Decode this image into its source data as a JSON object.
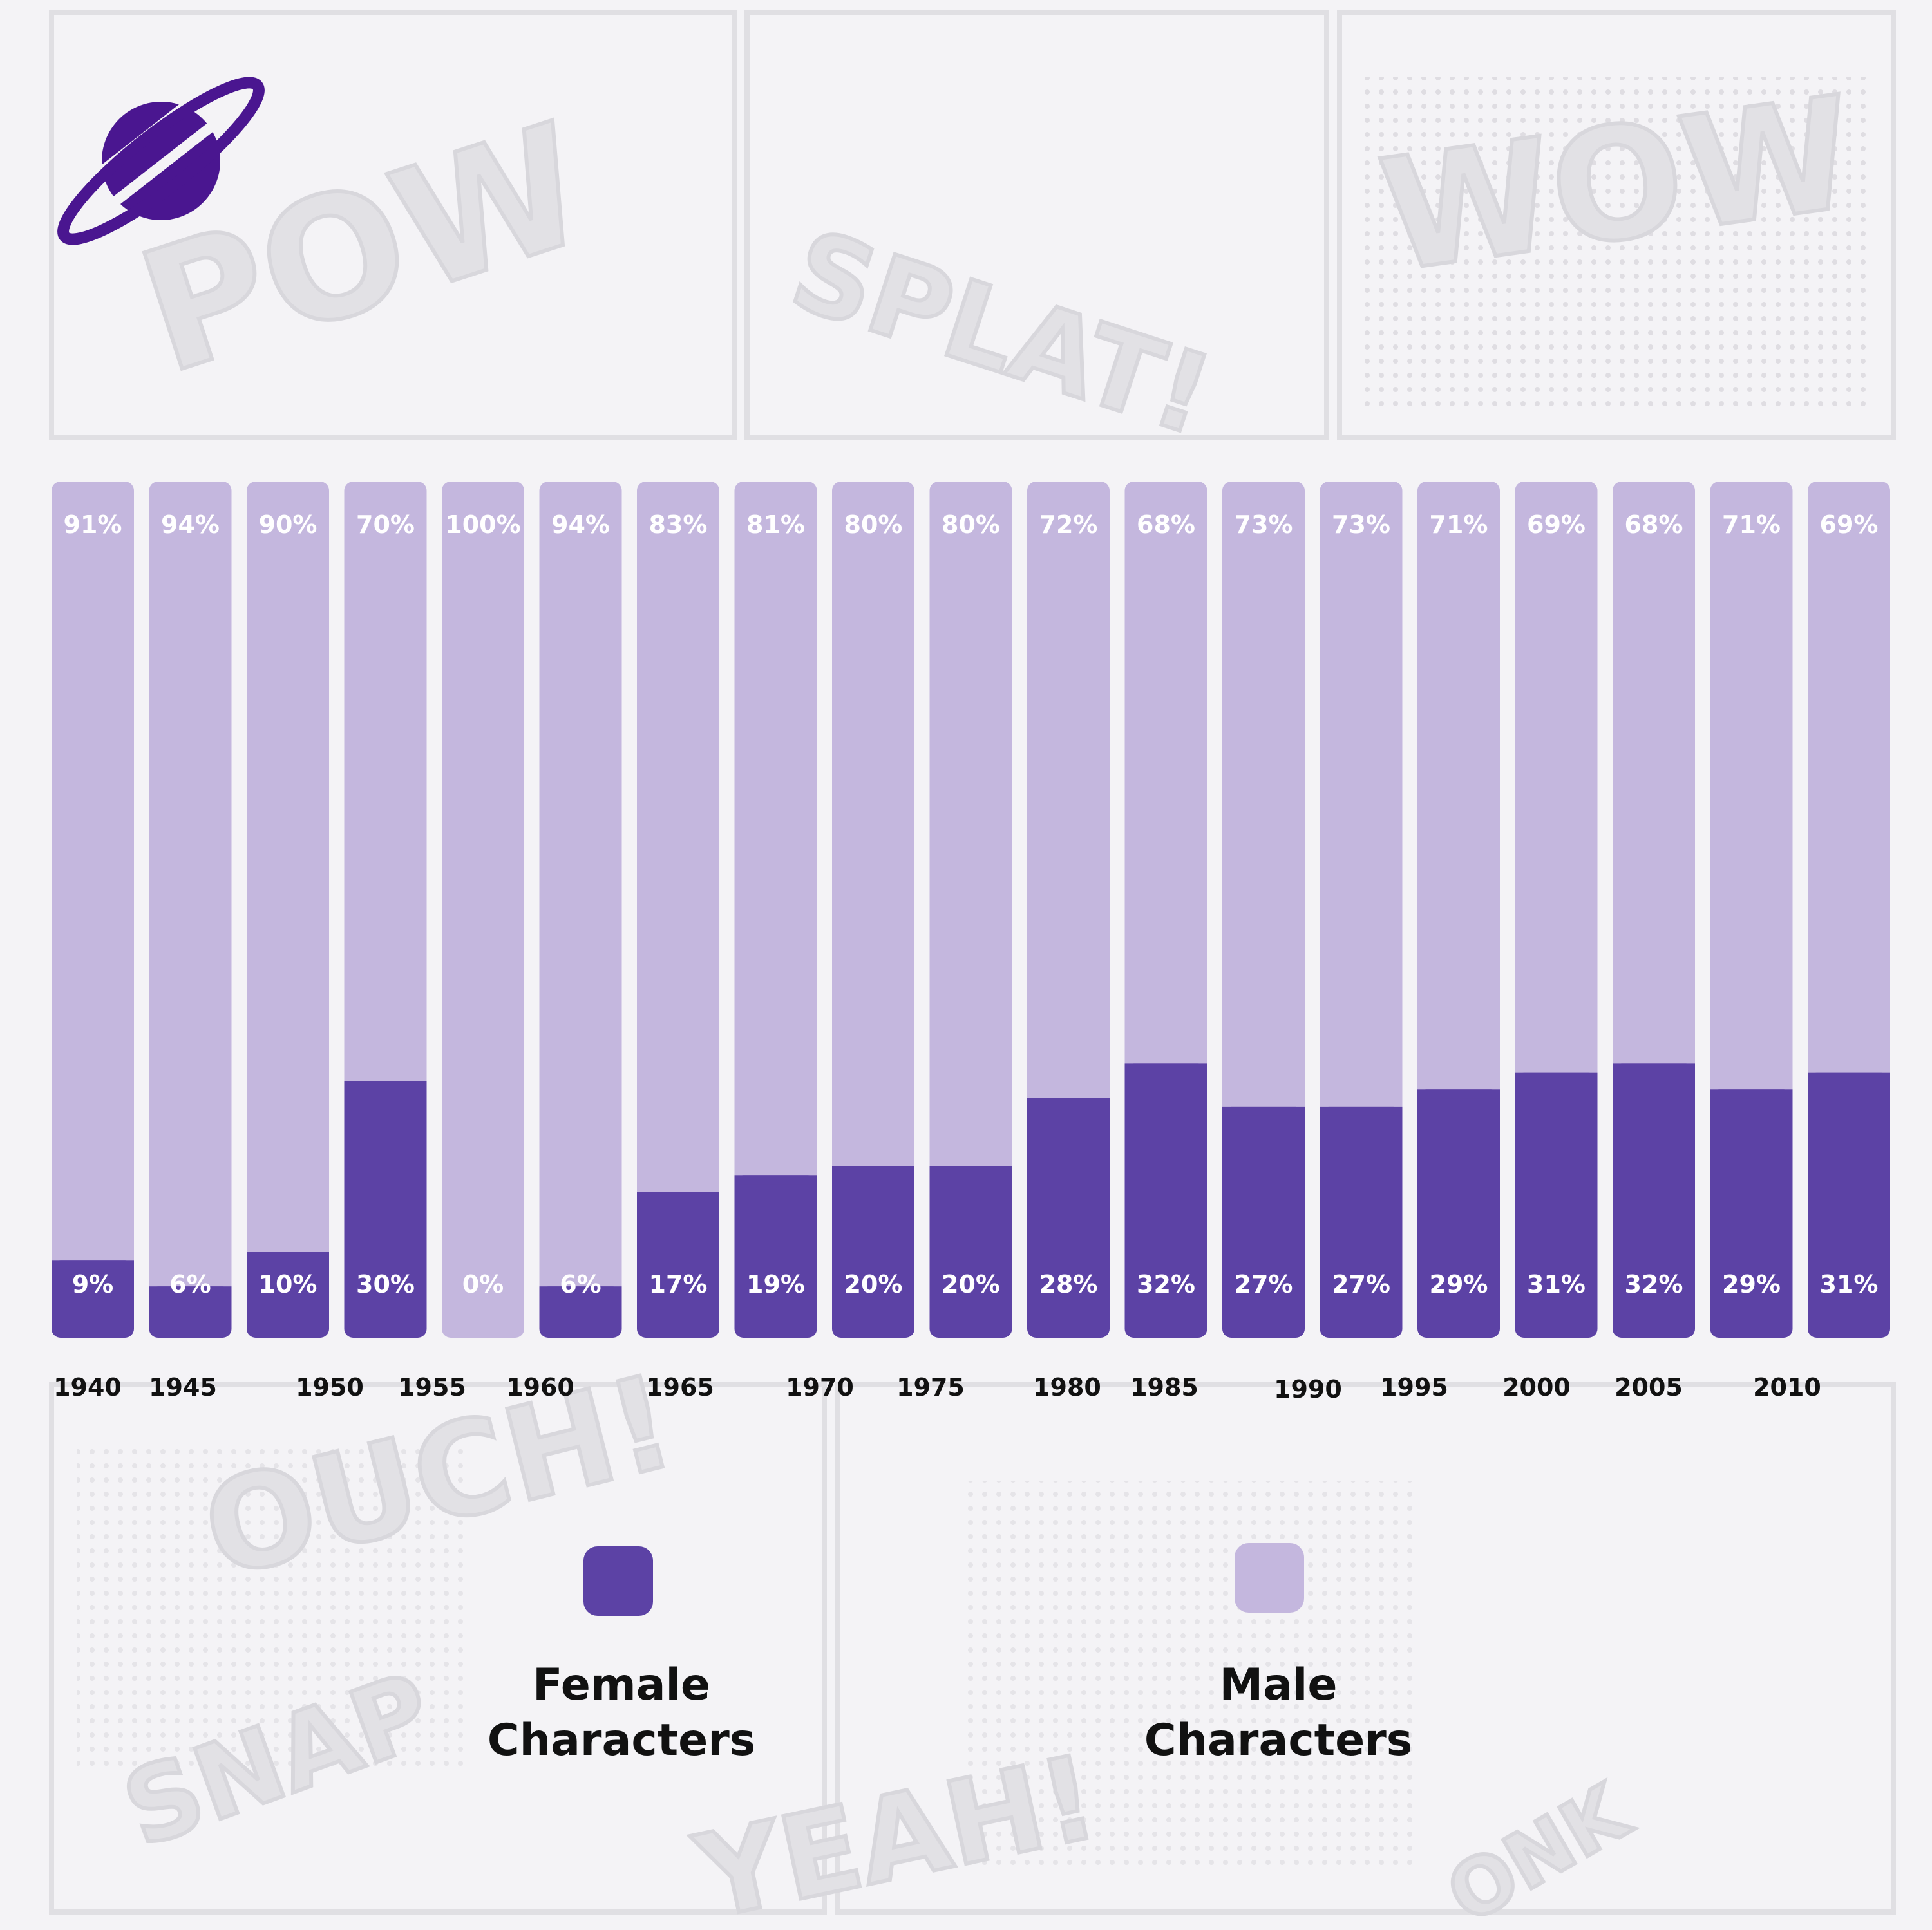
{
  "colors": {
    "female": "#5c42a5",
    "male": "#c4b7de",
    "logo": "#4a1690",
    "background": "#f4f3f6"
  },
  "logo": {
    "icon": "planet-logo-icon"
  },
  "background_words": [
    "POW",
    "SPLAT!",
    "WOW",
    "OUCH!",
    "SNAP",
    "YEAH!",
    "ONK"
  ],
  "chart_data": {
    "type": "bar",
    "stacked": true,
    "normalized": true,
    "categories": [
      "1940",
      "1945",
      "1950",
      "1955",
      "1960",
      "1965",
      "1970",
      "1975",
      "1980",
      "1985",
      "1990",
      "1995",
      "2000",
      "2005",
      "2010",
      "",
      "",
      "",
      ""
    ],
    "series": [
      {
        "name": "Female Characters",
        "values": [
          9,
          6,
          10,
          30,
          0,
          6,
          17,
          19,
          20,
          20,
          28,
          32,
          27,
          27,
          29,
          31,
          32,
          29,
          31
        ]
      },
      {
        "name": "Male Characters",
        "values": [
          91,
          94,
          90,
          70,
          100,
          94,
          83,
          81,
          80,
          80,
          72,
          68,
          73,
          73,
          71,
          69,
          68,
          71,
          69
        ]
      }
    ],
    "ylim": [
      0,
      100
    ],
    "grid": false,
    "legend": "bottom"
  }
}
